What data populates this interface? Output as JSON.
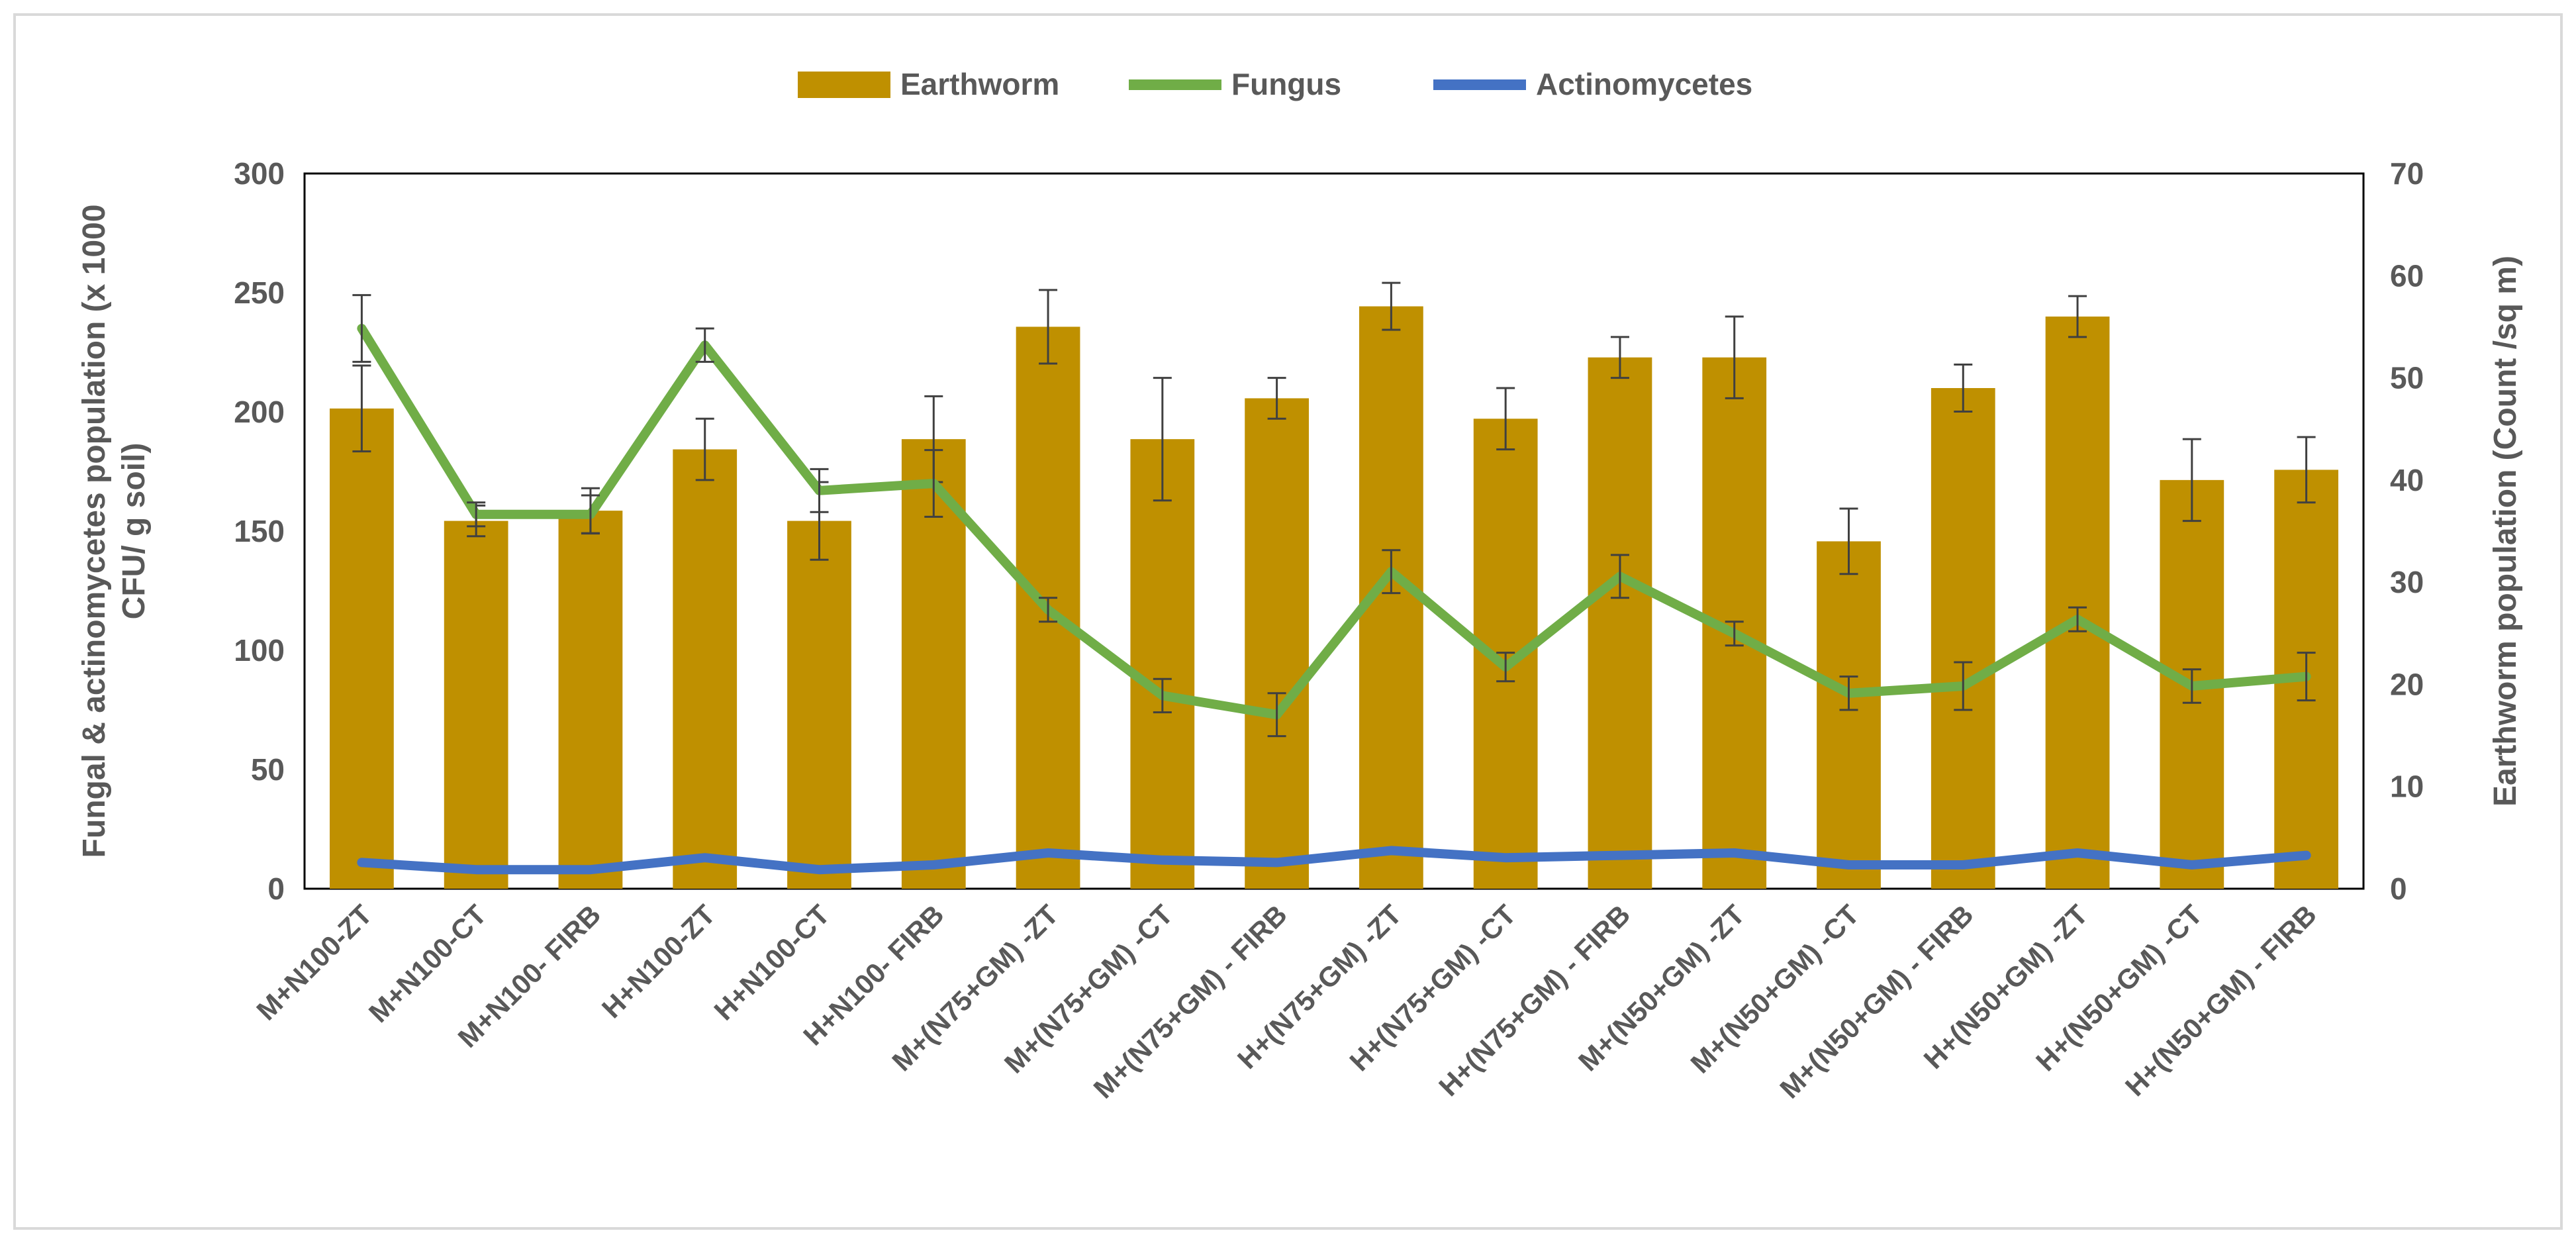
{
  "chart_data": {
    "type": "bar+line",
    "categories": [
      "M+N100-ZT",
      "M+N100-CT",
      "M+N100- FIRB",
      "H+N100-ZT",
      "H+N100-CT",
      "H+N100- FIRB",
      "M+(N75+GM) -ZT",
      "M+(N75+GM) -CT",
      "M+(N75+GM) - FIRB",
      "H+(N75+GM) -ZT",
      "H+(N75+GM) -CT",
      "H+(N75+GM) - FIRB",
      "M+(N50+GM) -ZT",
      "M+(N50+GM) -CT",
      "M+(N50+GM) - FIRB",
      "H+(N50+GM) -ZT",
      "H+(N50+GM) -CT",
      "H+(N50+GM) - FIRB"
    ],
    "series": [
      {
        "name": "Earthworm",
        "kind": "bar",
        "axis": "right",
        "color": "#bf9000",
        "values": [
          47,
          36,
          37,
          43,
          36,
          44,
          55,
          44,
          48,
          57,
          46,
          52,
          52,
          34,
          49,
          56,
          40,
          41
        ],
        "errors": [
          4.2,
          1.5,
          2.2,
          3.0,
          3.8,
          4.2,
          3.6,
          6.0,
          2.0,
          2.3,
          3.0,
          2.0,
          4.0,
          3.2,
          2.3,
          2.0,
          4.0,
          3.2
        ]
      },
      {
        "name": "Fungus",
        "kind": "line",
        "axis": "left",
        "color": "#70ad47",
        "values": [
          235,
          157,
          157,
          228,
          167,
          170,
          117,
          81,
          73,
          133,
          93,
          131,
          107,
          82,
          85,
          113,
          85,
          89
        ],
        "errors": [
          14,
          5,
          8,
          7,
          9,
          14,
          5,
          7,
          9,
          9,
          6,
          9,
          5,
          7,
          10,
          5,
          7,
          10
        ]
      },
      {
        "name": "Actinomycetes",
        "kind": "line",
        "axis": "left",
        "color": "#4472c4",
        "values": [
          11,
          8,
          8,
          13,
          8,
          10,
          15,
          12,
          11,
          16,
          13,
          14,
          15,
          10,
          10,
          15,
          10,
          14
        ]
      }
    ],
    "y_left": {
      "label_line1": "Fungal & actinomycetes population (x 1000",
      "label_line2": "CFU/ g soil)",
      "min": 0,
      "max": 300,
      "ticks": [
        0,
        50,
        100,
        150,
        200,
        250,
        300
      ]
    },
    "y_right": {
      "label": "Earthworm population (Count /sq m)",
      "min": 0,
      "max": 70,
      "ticks": [
        0,
        10,
        20,
        30,
        40,
        50,
        60,
        70
      ]
    },
    "legend": {
      "position": "top-center",
      "items": [
        "Earthworm",
        "Fungus",
        "Actinomycetes"
      ]
    },
    "grid": false
  }
}
